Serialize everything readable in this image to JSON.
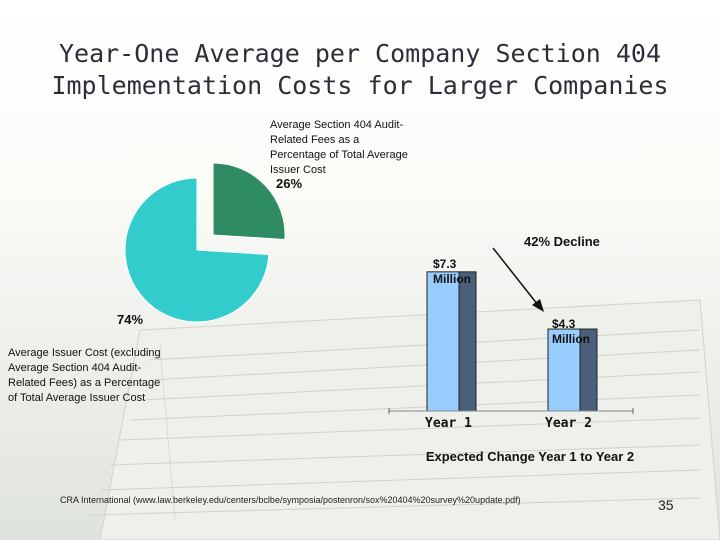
{
  "slide": {
    "title_line1": "Year-One Average per Company Section 404",
    "title_line2": "Implementation Costs for Larger Companies",
    "source": "CRA International (www.law.berkeley.edu/centers/bclbe/symposia/postenron/sox%20404%20survey%20update.pdf)",
    "slide_number": "35"
  },
  "chart_data": [
    {
      "type": "pie",
      "slices": [
        {
          "label": "Average Section 404 Audit-Related Fees as a Percentage of Total Average Issuer Cost",
          "value": 26,
          "value_label": "26%",
          "color": "#2e8b62",
          "exploded": true
        },
        {
          "label": "Average Issuer Cost (excluding Average Section 404 Audit-Related Fees) as a Percentage of Total Average Issuer Cost",
          "value": 74,
          "value_label": "74%",
          "color": "#33cccc",
          "exploded": false
        }
      ]
    },
    {
      "type": "bar",
      "categories": [
        "Year 1",
        "Year 2"
      ],
      "values": [
        7.3,
        4.3
      ],
      "value_labels": [
        [
          "$7.3",
          "Million"
        ],
        [
          "$4.3",
          "Million"
        ]
      ],
      "annotation": "42% Decline",
      "caption": "Expected Change Year 1 to Year 2",
      "bar_color": "#99ccff",
      "shadow_color": "#4a5f7a",
      "ylim": [
        0,
        9.6
      ]
    }
  ]
}
